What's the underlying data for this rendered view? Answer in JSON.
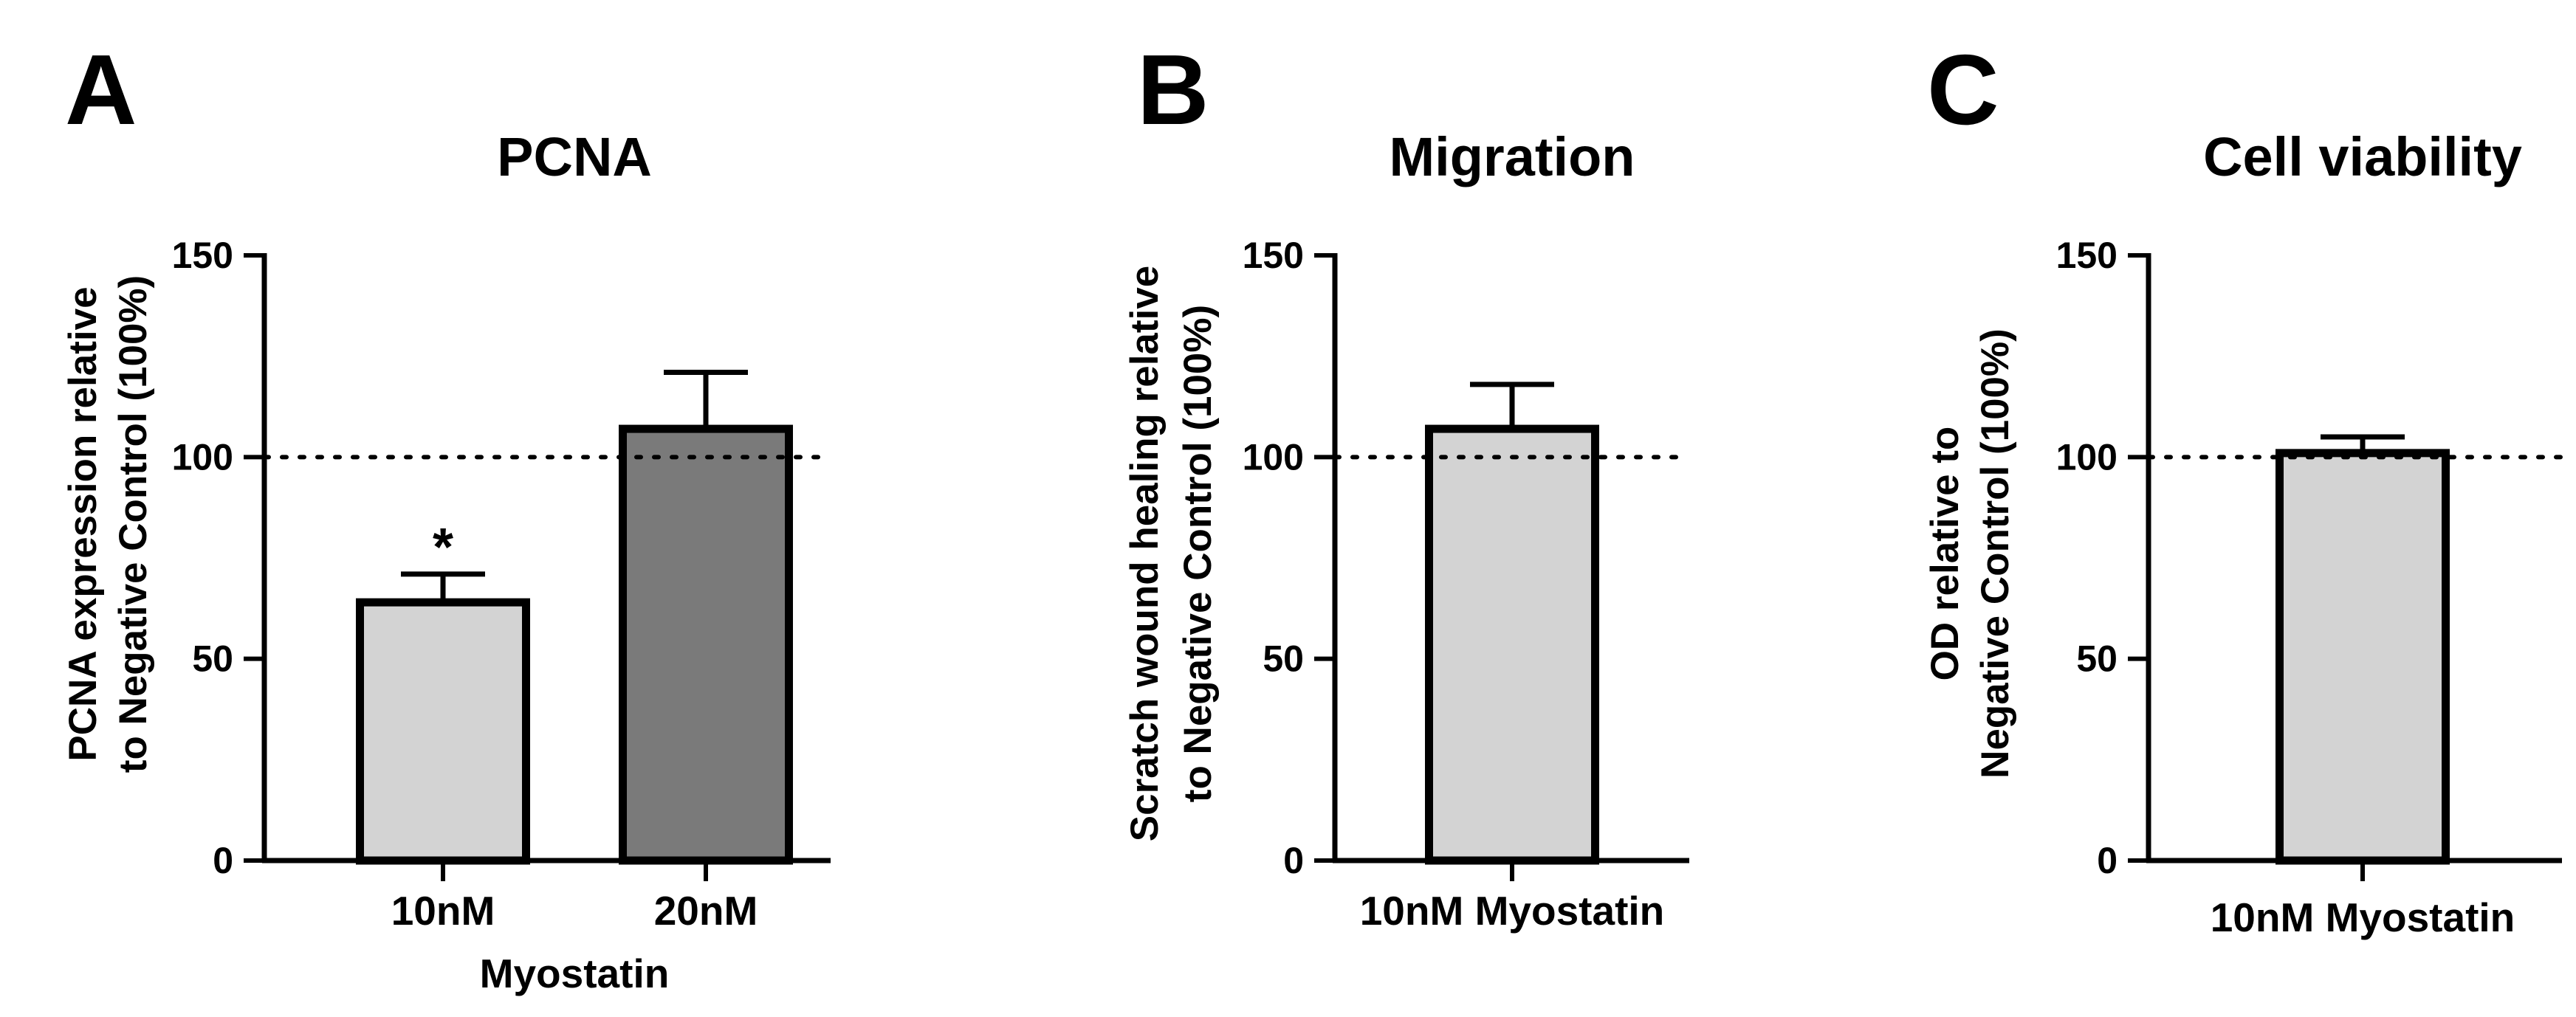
{
  "chart_data": [
    {
      "type": "bar",
      "panel": "A",
      "title": "PCNA",
      "ylabel": [
        "PCNA expression relative",
        "to Negative Control (100%)"
      ],
      "xlabel": "Myostatin",
      "categories": [
        "10nM",
        "20nM"
      ],
      "values": [
        64,
        107
      ],
      "errors": [
        7,
        14
      ],
      "annotations": [
        "*",
        ""
      ],
      "bar_colors": [
        "#d3d3d3",
        "#7a7a7a"
      ],
      "ylim": [
        0,
        150
      ],
      "yticks": [
        0,
        50,
        100,
        150
      ],
      "reference_line": 100,
      "grid": false
    },
    {
      "type": "bar",
      "panel": "B",
      "title": "Migration",
      "ylabel": [
        "Scratch wound healing relative",
        "to Negative Control (100%)"
      ],
      "xlabel": "",
      "categories": [
        "10nM Myostatin"
      ],
      "values": [
        107
      ],
      "errors": [
        11
      ],
      "annotations": [
        ""
      ],
      "bar_colors": [
        "#d3d3d3"
      ],
      "ylim": [
        0,
        150
      ],
      "yticks": [
        0,
        50,
        100,
        150
      ],
      "reference_line": 100,
      "grid": false
    },
    {
      "type": "bar",
      "panel": "C",
      "title": "Cell viability",
      "ylabel": [
        "OD relative to",
        "Negative Control (100%)"
      ],
      "xlabel": "",
      "categories": [
        "10nM Myostatin"
      ],
      "values": [
        101
      ],
      "errors": [
        4
      ],
      "annotations": [
        ""
      ],
      "bar_colors": [
        "#d3d3d3"
      ],
      "ylim": [
        0,
        150
      ],
      "yticks": [
        0,
        50,
        100,
        150
      ],
      "reference_line": 100,
      "grid": false
    }
  ]
}
